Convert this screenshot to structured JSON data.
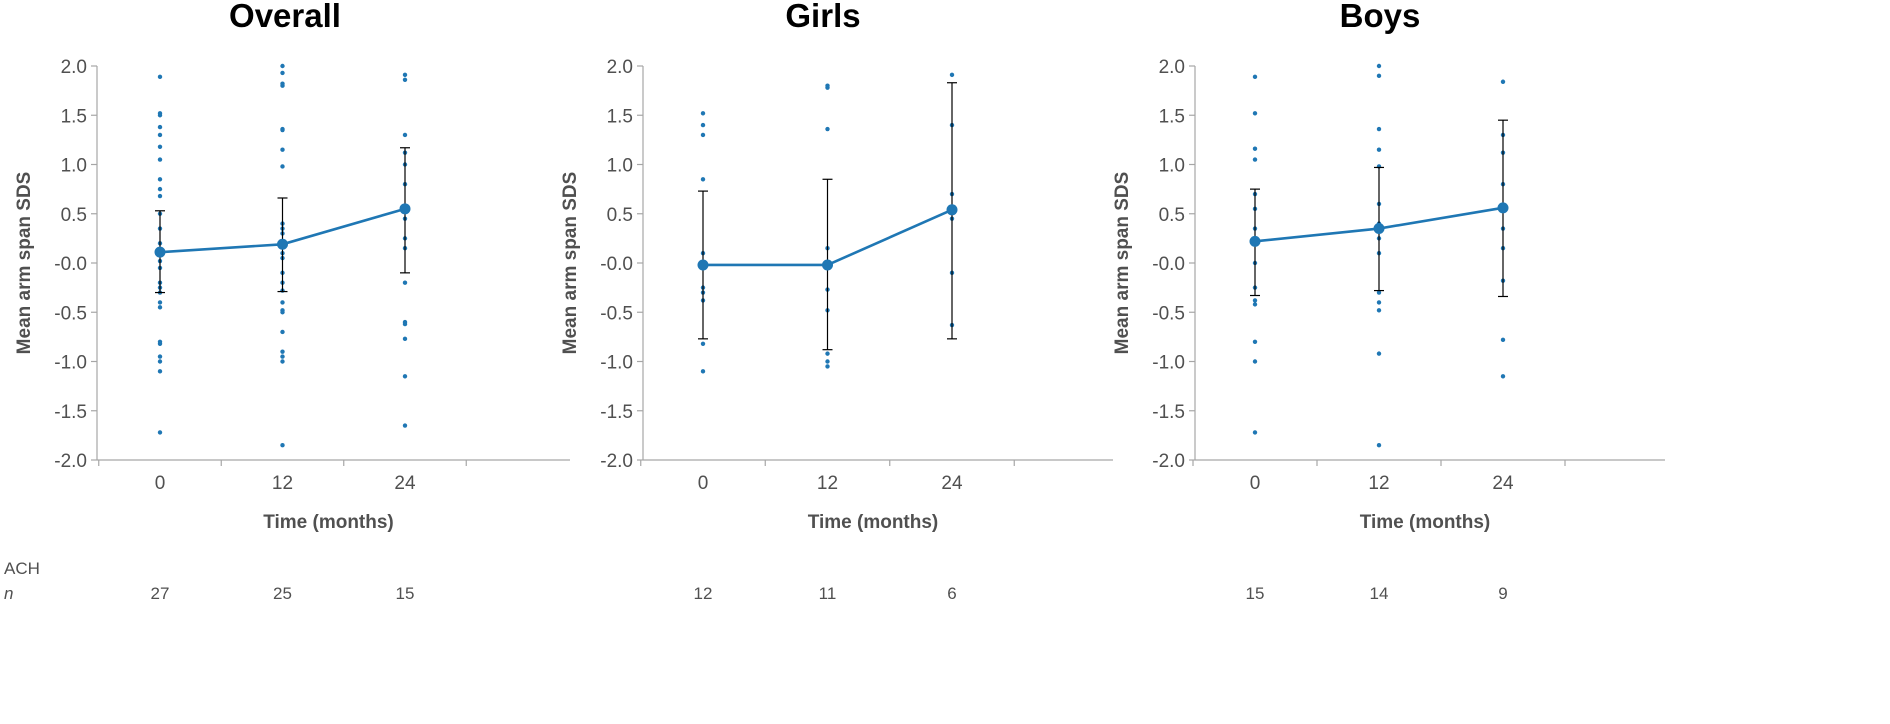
{
  "footer": {
    "group_label": "ACH",
    "n_label": "n"
  },
  "theme": {
    "series_color": "#1f77b4",
    "error_color": "#000000",
    "axis_color": "#a6a6a6",
    "text_color": "#505050"
  },
  "chart_data": [
    {
      "type": "scatter",
      "title": "Overall",
      "xlabel": "Time (months)",
      "ylabel": "Mean arm span SDS",
      "ylim": [
        -2.0,
        2.0
      ],
      "yticks": [
        "2.0",
        "1.5",
        "1.0",
        "0.5",
        "-0.0",
        "-0.5",
        "-1.0",
        "-1.5",
        "-2.0"
      ],
      "categories": [
        "0",
        "12",
        "24"
      ],
      "n": [
        "27",
        "25",
        "15"
      ],
      "series": [
        {
          "kind": "mean",
          "values": [
            0.11,
            0.19,
            0.55
          ],
          "err_low": [
            -0.3,
            -0.29,
            -0.1
          ],
          "err_high": [
            0.53,
            0.66,
            1.17
          ]
        }
      ],
      "points": [
        [
          1.89,
          1.52,
          1.5,
          1.38,
          1.3,
          1.18,
          1.05,
          0.85,
          0.75,
          0.68,
          0.5,
          0.35,
          0.2,
          0.1,
          0.02,
          -0.05,
          -0.2,
          -0.25,
          -0.3,
          -0.4,
          -0.45,
          -0.8,
          -0.82,
          -1.0,
          -1.1,
          -1.72,
          -0.95
        ],
        [
          2.0,
          1.93,
          1.82,
          1.8,
          1.36,
          1.35,
          1.15,
          0.98,
          0.4,
          0.35,
          0.3,
          0.2,
          0.1,
          0.05,
          -0.1,
          -0.2,
          -0.28,
          -0.4,
          -0.48,
          -0.5,
          -0.9,
          -0.95,
          -1.0,
          -1.85,
          -0.7
        ],
        [
          1.91,
          1.86,
          1.3,
          1.12,
          0.8,
          0.45,
          0.15,
          -0.2,
          -0.6,
          -0.62,
          -0.77,
          -1.15,
          -1.65,
          0.25,
          1.0
        ]
      ]
    },
    {
      "type": "scatter",
      "title": "Girls",
      "xlabel": "Time (months)",
      "ylabel": "Mean arm span SDS",
      "ylim": [
        -2.0,
        2.0
      ],
      "yticks": [
        "2.0",
        "1.5",
        "1.0",
        "0.5",
        "-0.0",
        "-0.5",
        "-1.0",
        "-1.5",
        "-2.0"
      ],
      "categories": [
        "0",
        "12",
        "24"
      ],
      "n": [
        "12",
        "11",
        "6"
      ],
      "series": [
        {
          "kind": "mean",
          "values": [
            -0.02,
            -0.02,
            0.54
          ],
          "err_low": [
            -0.77,
            -0.88,
            -0.77
          ],
          "err_high": [
            0.73,
            0.85,
            1.83
          ]
        }
      ],
      "points": [
        [
          1.52,
          1.4,
          1.3,
          0.85,
          0.1,
          0.0,
          -0.05,
          -0.25,
          -0.3,
          -0.38,
          -0.82,
          -1.1
        ],
        [
          1.8,
          1.78,
          1.36,
          0.15,
          0.0,
          -0.05,
          -0.27,
          -0.48,
          -0.92,
          -1.0,
          -1.05
        ],
        [
          1.91,
          0.45,
          -0.1,
          -0.63,
          0.7,
          1.4
        ]
      ]
    },
    {
      "type": "scatter",
      "title": "Boys",
      "xlabel": "Time (months)",
      "ylabel": "Mean arm span SDS",
      "ylim": [
        -2.0,
        2.0
      ],
      "yticks": [
        "2.0",
        "1.5",
        "1.0",
        "0.5",
        "-0.0",
        "-0.5",
        "-1.0",
        "-1.5",
        "-2.0"
      ],
      "categories": [
        "0",
        "12",
        "24"
      ],
      "n": [
        "15",
        "14",
        "9"
      ],
      "series": [
        {
          "kind": "mean",
          "values": [
            0.22,
            0.35,
            0.56
          ],
          "err_low": [
            -0.33,
            -0.28,
            -0.34
          ],
          "err_high": [
            0.75,
            0.97,
            1.45
          ]
        }
      ],
      "points": [
        [
          1.89,
          1.52,
          1.16,
          1.05,
          0.7,
          0.55,
          0.35,
          0.0,
          -0.25,
          -0.38,
          -0.42,
          -0.8,
          -1.0,
          -1.72,
          0.2
        ],
        [
          2.0,
          1.9,
          1.36,
          1.15,
          0.98,
          0.4,
          0.25,
          0.1,
          -0.4,
          -0.48,
          -0.92,
          -1.85,
          -0.3,
          0.6
        ],
        [
          1.84,
          1.3,
          1.12,
          0.35,
          0.15,
          -0.18,
          -0.78,
          -1.15,
          0.8
        ]
      ]
    }
  ]
}
